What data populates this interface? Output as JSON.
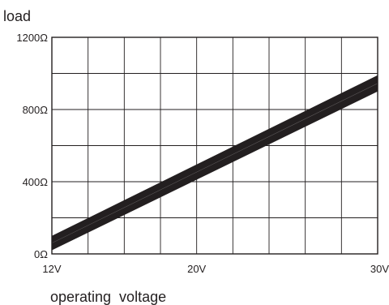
{
  "chart_data": {
    "type": "area",
    "ylabel": "load",
    "xlabel": "operating  voltage",
    "x_ticks": [
      {
        "value": 12,
        "label": "12V"
      },
      {
        "value": 20,
        "label": "20V"
      },
      {
        "value": 30,
        "label": "30V"
      }
    ],
    "y_ticks": [
      {
        "value": 0,
        "label": "0Ω"
      },
      {
        "value": 400,
        "label": "400Ω"
      },
      {
        "value": 800,
        "label": "800Ω"
      },
      {
        "value": 1200,
        "label": "1200Ω"
      }
    ],
    "xlim": [
      12,
      30
    ],
    "ylim": [
      0,
      1200
    ],
    "grid": true,
    "grid_x_step": 2,
    "grid_y_step": 200,
    "band": {
      "x": [
        12,
        30
      ],
      "lower": [
        20,
        900
      ],
      "upper": [
        100,
        990
      ]
    },
    "colors": {
      "band": "#231f20",
      "grid": "#231f20",
      "frame": "#231f20"
    }
  }
}
